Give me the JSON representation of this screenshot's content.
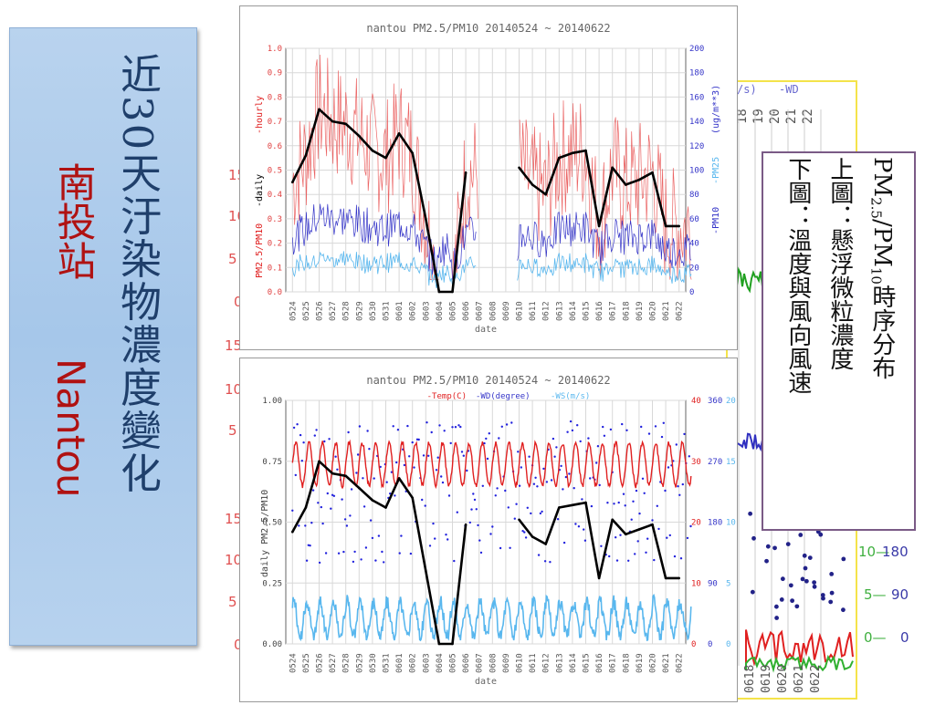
{
  "banner": {
    "title": "近30天汙染物濃度變化",
    "station_zh": "南投站",
    "station_en": "Nantou"
  },
  "legend": {
    "line1": "PM2.5/PM10時序分布",
    "line2": "上圖：懸浮微粒濃度",
    "line3": "下圖：溫度與風向風速"
  },
  "behind_chart": {
    "left_labels": [
      "15",
      "10",
      "5",
      "0",
      "15",
      "10",
      "5",
      "15",
      "10",
      "5",
      "0"
    ],
    "right_top_labels": [
      "/s)",
      "-WD"
    ],
    "right_date_header": [
      "18",
      "19",
      "20",
      "21",
      "22"
    ],
    "right_bottom_ticks": [
      "10",
      "5",
      "0"
    ],
    "right_bottom_wd": [
      "180",
      "90",
      "0"
    ],
    "right_bottom_dates": [
      "0618",
      "0619",
      "0620",
      "0621",
      "0622"
    ]
  },
  "chart_data": [
    {
      "type": "line",
      "title": "nantou PM2.5/PM10 20140524 ~ 20140622",
      "xlabel": "date",
      "ylabel_left_parts": [
        "PM2.5/PM10",
        "-daily",
        "-hourly"
      ],
      "ylabel_right_parts": [
        "-PM10",
        "-PM25",
        "(ug/m**3)"
      ],
      "x_ticks": [
        "0524",
        "0525",
        "0526",
        "0527",
        "0528",
        "0529",
        "0530",
        "0531",
        "0601",
        "0602",
        "0603",
        "0604",
        "0605",
        "0606",
        "0607",
        "0608",
        "0609",
        "0610",
        "0611",
        "0612",
        "0613",
        "0614",
        "0615",
        "0616",
        "0617",
        "0618",
        "0619",
        "0620",
        "0621",
        "0622"
      ],
      "ylim_left": [
        0.0,
        1.0
      ],
      "yticks_left": [
        "0.0",
        "0.1",
        "0.2",
        "0.3",
        "0.4",
        "0.5",
        "0.6",
        "0.7",
        "0.8",
        "0.9",
        "1.0"
      ],
      "ylim_right": [
        0,
        200
      ],
      "yticks_right": [
        "0",
        "20",
        "40",
        "60",
        "80",
        "100",
        "120",
        "140",
        "160",
        "180",
        "200"
      ],
      "grid": true,
      "series": [
        {
          "name": "daily",
          "color": "#000000",
          "axis": "left",
          "points": [
            [
              0,
              0.45
            ],
            [
              1,
              0.56
            ],
            [
              2,
              0.75
            ],
            [
              3,
              0.7
            ],
            [
              4,
              0.69
            ],
            [
              5,
              0.64
            ],
            [
              6,
              0.58
            ],
            [
              7,
              0.55
            ],
            [
              8,
              0.65
            ],
            [
              9,
              0.57
            ],
            [
              10,
              0.3
            ],
            [
              11,
              0.0
            ],
            [
              12,
              0.0
            ],
            [
              13,
              0.49
            ],
            [
              14,
              null
            ],
            [
              15,
              null
            ],
            [
              16,
              null
            ],
            [
              17,
              0.51
            ],
            [
              18,
              0.44
            ],
            [
              19,
              0.4
            ],
            [
              20,
              0.55
            ],
            [
              21,
              0.57
            ],
            [
              22,
              0.58
            ],
            [
              23,
              0.27
            ],
            [
              24,
              0.51
            ],
            [
              25,
              0.44
            ],
            [
              26,
              0.46
            ],
            [
              27,
              0.49
            ],
            [
              28,
              0.27
            ],
            [
              29,
              0.27
            ]
          ]
        },
        {
          "name": "hourly",
          "color": "#e83c3c",
          "axis": "left",
          "style": "noisy hourly trace following daily with ±0.25 variation"
        },
        {
          "name": "PM10",
          "color": "#3434c8",
          "axis": "right",
          "style": "hourly trace 15–70 ug/m3"
        },
        {
          "name": "PM25",
          "color": "#59b7ee",
          "axis": "right",
          "style": "hourly trace 5–30 ug/m3"
        }
      ]
    },
    {
      "type": "line",
      "title": "nantou PM2.5/PM10 20140524 ~ 20140622",
      "legend": [
        "-Temp(C)",
        "-WD(degree)",
        "-WS(m/s)"
      ],
      "xlabel": "date",
      "ylabel": "daily PM2.5/PM10",
      "x_ticks": [
        "0524",
        "0525",
        "0526",
        "0527",
        "0528",
        "0529",
        "0530",
        "0531",
        "0601",
        "0602",
        "0603",
        "0604",
        "0605",
        "0606",
        "0607",
        "0608",
        "0609",
        "0610",
        "0611",
        "0612",
        "0613",
        "0614",
        "0615",
        "0616",
        "0617",
        "0618",
        "0619",
        "0620",
        "0621",
        "0622"
      ],
      "ylim_left": [
        0.0,
        1.0
      ],
      "yticks_left": [
        "0.00",
        "0.25",
        "0.50",
        "0.75",
        "1.00"
      ],
      "right_axes": {
        "temp": {
          "ticks": [
            "0",
            "10",
            "20",
            "30",
            "40"
          ],
          "color": "#e02020"
        },
        "wd": {
          "ticks": [
            "0",
            "90",
            "180",
            "270",
            "360"
          ],
          "color": "#3434c8"
        },
        "ws": {
          "ticks": [
            "0",
            "5",
            "10",
            "15",
            "20"
          ],
          "color": "#59b7ee"
        }
      },
      "grid": true,
      "series": [
        {
          "name": "daily",
          "color": "#000000",
          "points": [
            [
              0,
              0.46
            ],
            [
              1,
              0.56
            ],
            [
              2,
              0.75
            ],
            [
              3,
              0.7
            ],
            [
              4,
              0.69
            ],
            [
              5,
              0.64
            ],
            [
              6,
              0.59
            ],
            [
              7,
              0.56
            ],
            [
              8,
              0.68
            ],
            [
              9,
              0.6
            ],
            [
              10,
              0.3
            ],
            [
              11,
              0.0
            ],
            [
              12,
              0.0
            ],
            [
              13,
              0.49
            ],
            [
              14,
              null
            ],
            [
              15,
              null
            ],
            [
              16,
              null
            ],
            [
              17,
              0.51
            ],
            [
              18,
              0.44
            ],
            [
              19,
              0.41
            ],
            [
              20,
              0.56
            ],
            [
              21,
              0.57
            ],
            [
              22,
              0.58
            ],
            [
              23,
              0.27
            ],
            [
              24,
              0.51
            ],
            [
              25,
              0.45
            ],
            [
              26,
              0.47
            ],
            [
              27,
              0.49
            ],
            [
              28,
              0.27
            ],
            [
              29,
              0.27
            ]
          ]
        },
        {
          "name": "Temp(C)",
          "color": "#e02020",
          "style": "diurnal cycle 26–33 C"
        },
        {
          "name": "WD(degree)",
          "color": "#2222dd",
          "style": "scatter dots 100–330 degrees"
        },
        {
          "name": "WS(m/s)",
          "color": "#59b7ee",
          "style": "diurnal 0.5–3 m/s"
        }
      ]
    }
  ]
}
